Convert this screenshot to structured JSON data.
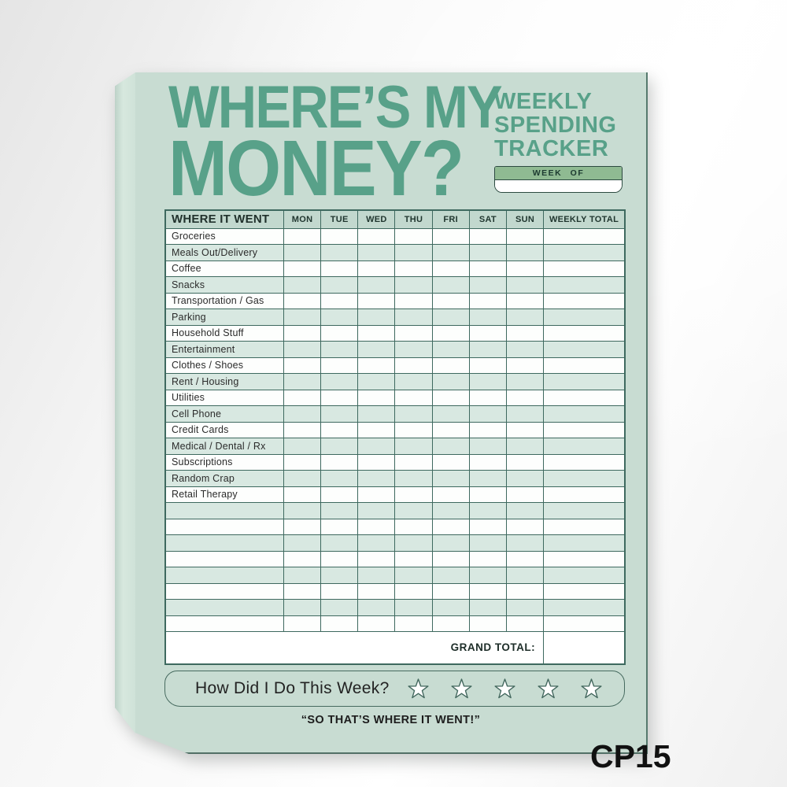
{
  "product_code": "CP15",
  "colors": {
    "pad_bg": "#c8dcd2",
    "pad_spine": "#d5e6dc",
    "title_green": "#58a189",
    "table_border": "#3e695f",
    "header_row_bg": "#c2d8ce",
    "tint_row_bg": "#d8e8e1",
    "white_row_bg": "#fdfefd",
    "week_of_bar_bg": "#8fba92",
    "star_outline": "#44695f"
  },
  "pad": {
    "title": {
      "line1": "WHERE’S MY",
      "line2": "MONEY?"
    },
    "subtitle_lines": [
      "WEEKLY",
      "SPENDING",
      "TRACKER"
    ],
    "week_of": {
      "label": "WEEK OF",
      "value": ""
    },
    "table": {
      "headers": [
        "WHERE IT WENT",
        "MON",
        "TUE",
        "WED",
        "THU",
        "FRI",
        "SAT",
        "SUN",
        "WEEKLY TOTAL"
      ],
      "categories": [
        "Groceries",
        "Meals Out/Delivery",
        "Coffee",
        "Snacks",
        "Transportation / Gas",
        "Parking",
        "Household Stuff",
        "Entertainment",
        "Clothes / Shoes",
        "Rent / Housing",
        "Utilities",
        "Cell Phone",
        "Credit Cards",
        "Medical / Dental / Rx",
        "Subscriptions",
        "Random Crap",
        "Retail Therapy"
      ],
      "blank_row_count": 8,
      "grand_total_label": "GRAND TOTAL:",
      "grand_total_value": ""
    },
    "rating": {
      "question": "How Did I Do This Week?",
      "star_count": 5
    },
    "quote": "“SO THAT’S WHERE IT WENT!”"
  }
}
